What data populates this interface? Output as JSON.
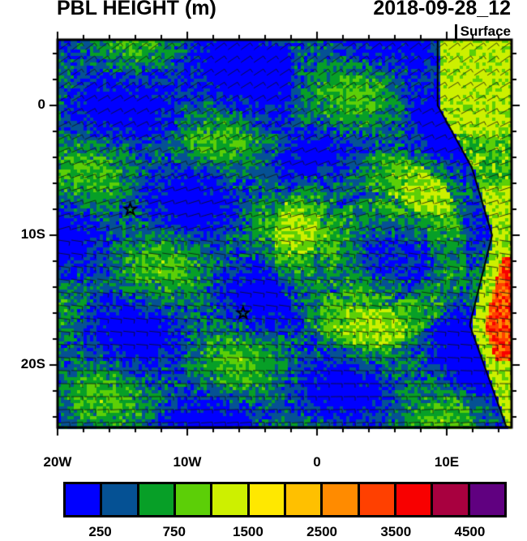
{
  "header": {
    "title": "PBL HEIGHT (m)",
    "date": "2018-09-28_12",
    "level": "Surface"
  },
  "map": {
    "lon_range": [
      -20,
      15
    ],
    "lat_range": [
      -24.8,
      5
    ],
    "x_ticks": [
      {
        "value": -20,
        "label": "20W"
      },
      {
        "value": -10,
        "label": "10W"
      },
      {
        "value": 0,
        "label": "0"
      },
      {
        "value": 10,
        "label": "10E"
      }
    ],
    "y_ticks": [
      {
        "value": 0,
        "label": "0"
      },
      {
        "value": -10,
        "label": "10S"
      },
      {
        "value": -20,
        "label": "20S"
      }
    ],
    "markers": [
      {
        "type": "star",
        "lon": -14.4,
        "lat": -8
      },
      {
        "type": "star",
        "lon": -5.7,
        "lat": -16
      }
    ],
    "overlay": "wind barbs"
  },
  "colorbar": {
    "levels": [
      250,
      500,
      750,
      1000,
      1500,
      2000,
      2500,
      3000,
      3500,
      4000,
      4500
    ],
    "labels": [
      "250",
      "750",
      "1500",
      "2500",
      "3500",
      "4500"
    ],
    "colors": [
      "#0000ff",
      "#055194",
      "#079f27",
      "#5ccf07",
      "#cdf000",
      "#ffe800",
      "#ffc000",
      "#ff8b00",
      "#ff4000",
      "#f80000",
      "#a8003f",
      "#600080"
    ]
  }
}
